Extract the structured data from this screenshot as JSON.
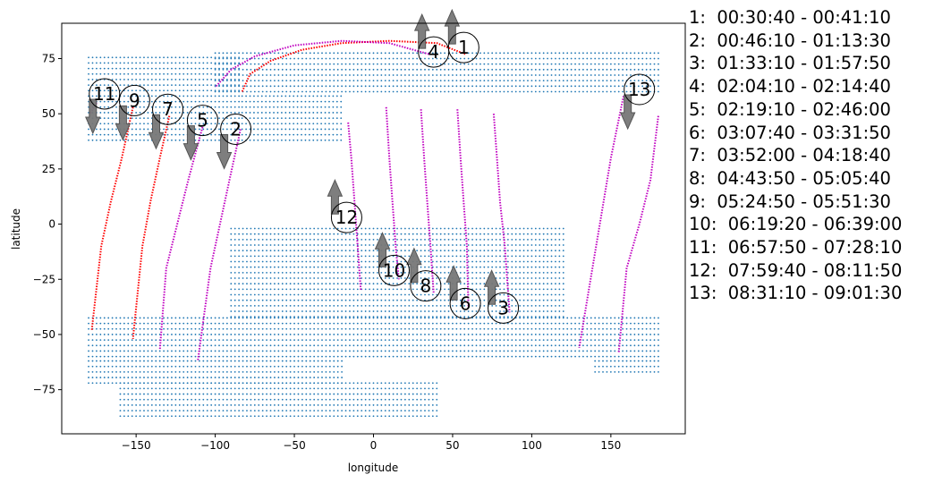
{
  "chart_data": {
    "type": "scatter",
    "title": "",
    "xlabel": "longitude",
    "ylabel": "latitude",
    "xlim": [
      -197,
      197
    ],
    "ylim": [
      -95,
      91
    ],
    "xticks": [
      -150,
      -100,
      -50,
      0,
      50,
      100,
      150
    ],
    "yticks": [
      -75,
      -50,
      -25,
      0,
      25,
      50,
      75
    ],
    "grid": false,
    "colors": {
      "grid_points": "#1f77b4",
      "day_track": "#ff0000",
      "night_track": "#c000c0",
      "arrow": "#777777"
    },
    "grid_regions": [
      {
        "lon_min": -180,
        "lon_max": -83,
        "lat_min": 38,
        "lat_max": 77
      },
      {
        "lon_min": -100,
        "lon_max": 180,
        "lat_min": 60,
        "lat_max": 79
      },
      {
        "lon_min": -83,
        "lon_max": -20,
        "lat_min": 38,
        "lat_max": 60
      },
      {
        "lon_min": -90,
        "lon_max": 120,
        "lat_min": -42,
        "lat_max": -2
      },
      {
        "lon_min": -180,
        "lon_max": 180,
        "lat_min": -60,
        "lat_max": -42
      },
      {
        "lon_min": -180,
        "lon_max": -20,
        "lat_min": -72,
        "lat_max": -60
      },
      {
        "lon_min": -160,
        "lon_max": 40,
        "lat_min": -87,
        "lat_max": -72
      },
      {
        "lon_min": 140,
        "lon_max": 180,
        "lat_min": -67,
        "lat_max": -60
      }
    ],
    "tracks": [
      {
        "label": "1",
        "red_points": [
          [
            58,
            77
          ],
          [
            40,
            82
          ],
          [
            10,
            83
          ],
          [
            -20,
            82
          ],
          [
            -45,
            79
          ],
          [
            -65,
            74
          ],
          [
            -78,
            68
          ],
          [
            -83,
            60
          ]
        ],
        "magenta_points": [],
        "arrow": "up",
        "marker": [
          57,
          80
        ]
      },
      {
        "label": "2",
        "red_points": [],
        "magenta_points": [
          [
            35,
            77
          ],
          [
            10,
            82
          ],
          [
            -20,
            83
          ],
          [
            -50,
            81
          ],
          [
            -75,
            76
          ],
          [
            -90,
            70
          ],
          [
            -100,
            62
          ]
        ],
        "arrow": "down",
        "marker": [
          -87,
          43
        ]
      },
      {
        "label": "3",
        "red_points": [],
        "magenta_points": [
          [
            76,
            50
          ],
          [
            78,
            30
          ],
          [
            80,
            10
          ],
          [
            83,
            -10
          ],
          [
            86,
            -40
          ]
        ],
        "arrow": "up",
        "marker": [
          82,
          -38
        ]
      },
      {
        "label": "4",
        "red_points": [],
        "magenta_points": [
          [
            -84,
            43
          ],
          [
            -91,
            20
          ],
          [
            -97,
            0
          ],
          [
            -103,
            -20
          ],
          [
            -111,
            -62
          ]
        ],
        "arrow": "up",
        "marker": [
          38,
          78
        ]
      },
      {
        "label": "5",
        "red_points": [],
        "magenta_points": [
          [
            -108,
            44
          ],
          [
            -117,
            20
          ],
          [
            -124,
            0
          ],
          [
            -131,
            -20
          ],
          [
            -135,
            -57
          ]
        ],
        "arrow": "down",
        "marker": [
          -108,
          47
        ]
      },
      {
        "label": "6",
        "red_points": [],
        "magenta_points": [
          [
            53,
            52
          ],
          [
            55,
            30
          ],
          [
            57,
            10
          ],
          [
            59,
            -10
          ],
          [
            60,
            -38
          ]
        ],
        "arrow": "up",
        "marker": [
          58,
          -36
        ]
      },
      {
        "label": "7",
        "red_points": [
          [
            -129,
            49
          ],
          [
            -135,
            30
          ],
          [
            -141,
            10
          ],
          [
            -146,
            -10
          ],
          [
            -152,
            -52
          ]
        ],
        "magenta_points": [],
        "arrow": "down",
        "marker": [
          -130,
          52
        ]
      },
      {
        "label": "8",
        "red_points": [],
        "magenta_points": [
          [
            30,
            52
          ],
          [
            32,
            30
          ],
          [
            34,
            10
          ],
          [
            36,
            -10
          ],
          [
            38,
            -31
          ]
        ],
        "arrow": "up",
        "marker": [
          33,
          -28
        ]
      },
      {
        "label": "9",
        "red_points": [
          [
            -152,
            53
          ],
          [
            -159,
            30
          ],
          [
            -166,
            10
          ],
          [
            -172,
            -10
          ],
          [
            -178,
            -48
          ]
        ],
        "magenta_points": [],
        "arrow": "down",
        "marker": [
          -151,
          56
        ]
      },
      {
        "label": "10",
        "red_points": [],
        "magenta_points": [
          [
            8,
            53
          ],
          [
            10,
            30
          ],
          [
            12,
            10
          ],
          [
            14,
            -10
          ],
          [
            16,
            -25
          ]
        ],
        "arrow": "up",
        "marker": [
          13,
          -21
        ]
      },
      {
        "label": "11",
        "red_points": [],
        "magenta_points": [
          [
            -175,
            55
          ],
          [
            -179,
            50
          ]
        ],
        "arrow": "down",
        "marker": [
          -170,
          59
        ]
      },
      {
        "label": "12",
        "red_points": [],
        "magenta_points": [
          [
            -16,
            46
          ],
          [
            -14,
            30
          ],
          [
            -12,
            10
          ],
          [
            -10,
            -10
          ],
          [
            -8,
            -30
          ]
        ],
        "arrow": "up",
        "marker": [
          -17,
          3
        ]
      },
      {
        "label": "13",
        "red_points": [],
        "magenta_points": [
          [
            158,
            58
          ],
          [
            150,
            30
          ],
          [
            143,
            0
          ],
          [
            136,
            -30
          ],
          [
            130,
            -56
          ]
        ],
        "arrow": "down",
        "marker": [
          168,
          61
        ]
      }
    ],
    "extra_tracks": [
      {
        "color": "magenta",
        "points": [
          [
            180,
            49
          ],
          [
            175,
            20
          ],
          [
            168,
            0
          ],
          [
            160,
            -20
          ],
          [
            155,
            -58
          ]
        ]
      }
    ],
    "legend": [
      "1:  00:30:40 - 00:41:10",
      "2:  00:46:10 - 01:13:30",
      "3:  01:33:10 - 01:57:50",
      "4:  02:04:10 - 02:14:40",
      "5:  02:19:10 - 02:46:00",
      "6:  03:07:40 - 03:31:50",
      "7:  03:52:00 - 04:18:40",
      "8:  04:43:50 - 05:05:40",
      "9:  05:24:50 - 05:51:30",
      "10:  06:19:20 - 06:39:00",
      "11:  06:57:50 - 07:28:10",
      "12:  07:59:40 - 08:11:50",
      "13:  08:31:10 - 09:01:30"
    ]
  }
}
